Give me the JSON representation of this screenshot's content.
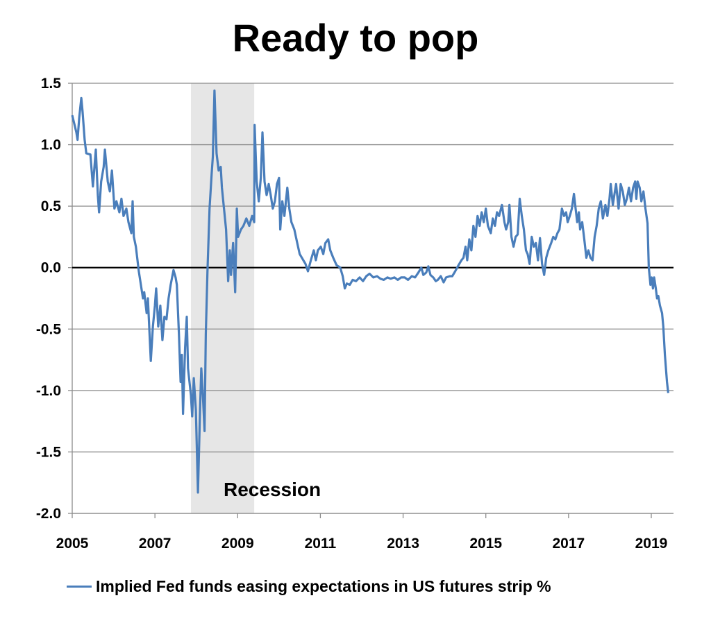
{
  "chart_data": {
    "type": "line",
    "title": "Ready to pop",
    "xlabel": "",
    "ylabel": "",
    "xlim": [
      2005,
      2019.55
    ],
    "ylim": [
      -2.0,
      1.5
    ],
    "x_ticks": [
      "2005",
      "2007",
      "2009",
      "2011",
      "2013",
      "2015",
      "2017",
      "2019"
    ],
    "y_ticks": [
      "1.5",
      "1.0",
      "0.5",
      "0.0",
      "-0.5",
      "-1.0",
      "-1.5",
      "-2.0"
    ],
    "grid": "horizontal",
    "zero_line": true,
    "legend": "bottom",
    "colors": {
      "series": "#4a7ebb",
      "recession_shade": "#e6e6e6",
      "grid": "#8c8c8c",
      "zero_line": "#000000"
    },
    "annotations": [
      {
        "text": "Recession",
        "x_start": 2007.87,
        "x_end": 2009.4
      }
    ],
    "series": [
      {
        "name": "Implied Fed funds easing expectations in US futures strip %",
        "points": [
          [
            2005.0,
            1.24
          ],
          [
            2005.05,
            1.17
          ],
          [
            2005.1,
            1.1
          ],
          [
            2005.13,
            1.04
          ],
          [
            2005.17,
            1.22
          ],
          [
            2005.22,
            1.38
          ],
          [
            2005.25,
            1.27
          ],
          [
            2005.3,
            1.04
          ],
          [
            2005.34,
            0.93
          ],
          [
            2005.44,
            0.92
          ],
          [
            2005.5,
            0.66
          ],
          [
            2005.57,
            0.96
          ],
          [
            2005.62,
            0.59
          ],
          [
            2005.65,
            0.45
          ],
          [
            2005.7,
            0.7
          ],
          [
            2005.76,
            0.82
          ],
          [
            2005.79,
            0.96
          ],
          [
            2005.86,
            0.7
          ],
          [
            2005.91,
            0.62
          ],
          [
            2005.96,
            0.79
          ],
          [
            2006.02,
            0.48
          ],
          [
            2006.07,
            0.54
          ],
          [
            2006.14,
            0.45
          ],
          [
            2006.19,
            0.56
          ],
          [
            2006.24,
            0.42
          ],
          [
            2006.31,
            0.48
          ],
          [
            2006.36,
            0.37
          ],
          [
            2006.43,
            0.28
          ],
          [
            2006.46,
            0.54
          ],
          [
            2006.49,
            0.25
          ],
          [
            2006.54,
            0.17
          ],
          [
            2006.61,
            -0.03
          ],
          [
            2006.66,
            -0.14
          ],
          [
            2006.71,
            -0.25
          ],
          [
            2006.74,
            -0.2
          ],
          [
            2006.8,
            -0.37
          ],
          [
            2006.83,
            -0.25
          ],
          [
            2006.9,
            -0.76
          ],
          [
            2006.95,
            -0.48
          ],
          [
            2007.0,
            -0.31
          ],
          [
            2007.03,
            -0.17
          ],
          [
            2007.08,
            -0.48
          ],
          [
            2007.13,
            -0.31
          ],
          [
            2007.18,
            -0.59
          ],
          [
            2007.23,
            -0.4
          ],
          [
            2007.28,
            -0.42
          ],
          [
            2007.33,
            -0.25
          ],
          [
            2007.38,
            -0.14
          ],
          [
            2007.45,
            -0.02
          ],
          [
            2007.5,
            -0.08
          ],
          [
            2007.53,
            -0.14
          ],
          [
            2007.58,
            -0.54
          ],
          [
            2007.62,
            -0.93
          ],
          [
            2007.65,
            -0.71
          ],
          [
            2007.68,
            -1.19
          ],
          [
            2007.73,
            -0.65
          ],
          [
            2007.77,
            -0.4
          ],
          [
            2007.8,
            -0.82
          ],
          [
            2007.87,
            -1.04
          ],
          [
            2007.9,
            -1.21
          ],
          [
            2007.94,
            -0.9
          ],
          [
            2007.99,
            -1.16
          ],
          [
            2008.04,
            -1.83
          ],
          [
            2008.09,
            -1.16
          ],
          [
            2008.12,
            -0.82
          ],
          [
            2008.16,
            -1.04
          ],
          [
            2008.2,
            -1.33
          ],
          [
            2008.23,
            -0.54
          ],
          [
            2008.27,
            -0.03
          ],
          [
            2008.32,
            0.48
          ],
          [
            2008.37,
            0.76
          ],
          [
            2008.4,
            0.9
          ],
          [
            2008.44,
            1.44
          ],
          [
            2008.49,
            0.93
          ],
          [
            2008.54,
            0.79
          ],
          [
            2008.59,
            0.82
          ],
          [
            2008.62,
            0.65
          ],
          [
            2008.67,
            0.48
          ],
          [
            2008.72,
            0.31
          ],
          [
            2008.77,
            -0.11
          ],
          [
            2008.81,
            0.14
          ],
          [
            2008.84,
            -0.06
          ],
          [
            2008.89,
            0.2
          ],
          [
            2008.94,
            -0.2
          ],
          [
            2008.98,
            0.48
          ],
          [
            2009.01,
            0.25
          ],
          [
            2009.08,
            0.31
          ],
          [
            2009.14,
            0.34
          ],
          [
            2009.21,
            0.4
          ],
          [
            2009.28,
            0.34
          ],
          [
            2009.35,
            0.42
          ],
          [
            2009.4,
            0.37
          ],
          [
            2009.41,
            1.16
          ],
          [
            2009.46,
            0.7
          ],
          [
            2009.51,
            0.54
          ],
          [
            2009.56,
            0.73
          ],
          [
            2009.6,
            1.1
          ],
          [
            2009.65,
            0.7
          ],
          [
            2009.7,
            0.59
          ],
          [
            2009.75,
            0.68
          ],
          [
            2009.8,
            0.59
          ],
          [
            2009.85,
            0.48
          ],
          [
            2009.9,
            0.54
          ],
          [
            2009.95,
            0.68
          ],
          [
            2010.0,
            0.73
          ],
          [
            2010.03,
            0.31
          ],
          [
            2010.08,
            0.54
          ],
          [
            2010.13,
            0.42
          ],
          [
            2010.2,
            0.65
          ],
          [
            2010.25,
            0.48
          ],
          [
            2010.3,
            0.37
          ],
          [
            2010.37,
            0.31
          ],
          [
            2010.44,
            0.2
          ],
          [
            2010.5,
            0.11
          ],
          [
            2010.57,
            0.07
          ],
          [
            2010.64,
            0.03
          ],
          [
            2010.7,
            -0.03
          ],
          [
            2010.77,
            0.06
          ],
          [
            2010.84,
            0.14
          ],
          [
            2010.89,
            0.06
          ],
          [
            2010.94,
            0.14
          ],
          [
            2011.01,
            0.17
          ],
          [
            2011.07,
            0.11
          ],
          [
            2011.12,
            0.2
          ],
          [
            2011.19,
            0.23
          ],
          [
            2011.24,
            0.14
          ],
          [
            2011.31,
            0.08
          ],
          [
            2011.39,
            0.02
          ],
          [
            2011.48,
            0.0
          ],
          [
            2011.54,
            -0.07
          ],
          [
            2011.59,
            -0.17
          ],
          [
            2011.64,
            -0.13
          ],
          [
            2011.71,
            -0.14
          ],
          [
            2011.78,
            -0.1
          ],
          [
            2011.86,
            -0.11
          ],
          [
            2011.95,
            -0.08
          ],
          [
            2012.03,
            -0.11
          ],
          [
            2012.11,
            -0.07
          ],
          [
            2012.19,
            -0.05
          ],
          [
            2012.28,
            -0.08
          ],
          [
            2012.37,
            -0.07
          ],
          [
            2012.45,
            -0.09
          ],
          [
            2012.53,
            -0.1
          ],
          [
            2012.62,
            -0.08
          ],
          [
            2012.7,
            -0.09
          ],
          [
            2012.79,
            -0.08
          ],
          [
            2012.87,
            -0.1
          ],
          [
            2012.95,
            -0.08
          ],
          [
            2013.04,
            -0.08
          ],
          [
            2013.12,
            -0.1
          ],
          [
            2013.21,
            -0.07
          ],
          [
            2013.29,
            -0.08
          ],
          [
            2013.37,
            -0.04
          ],
          [
            2013.44,
            0.0
          ],
          [
            2013.49,
            -0.06
          ],
          [
            2013.56,
            -0.04
          ],
          [
            2013.61,
            0.01
          ],
          [
            2013.66,
            -0.06
          ],
          [
            2013.73,
            -0.08
          ],
          [
            2013.79,
            -0.11
          ],
          [
            2013.84,
            -0.1
          ],
          [
            2013.91,
            -0.07
          ],
          [
            2013.98,
            -0.12
          ],
          [
            2014.04,
            -0.08
          ],
          [
            2014.13,
            -0.07
          ],
          [
            2014.19,
            -0.07
          ],
          [
            2014.26,
            -0.03
          ],
          [
            2014.34,
            0.02
          ],
          [
            2014.41,
            0.06
          ],
          [
            2014.46,
            0.08
          ],
          [
            2014.51,
            0.17
          ],
          [
            2014.55,
            0.06
          ],
          [
            2014.6,
            0.23
          ],
          [
            2014.65,
            0.14
          ],
          [
            2014.7,
            0.34
          ],
          [
            2014.75,
            0.25
          ],
          [
            2014.8,
            0.42
          ],
          [
            2014.85,
            0.34
          ],
          [
            2014.9,
            0.45
          ],
          [
            2014.95,
            0.37
          ],
          [
            2015.0,
            0.48
          ],
          [
            2015.05,
            0.34
          ],
          [
            2015.12,
            0.28
          ],
          [
            2015.17,
            0.4
          ],
          [
            2015.22,
            0.34
          ],
          [
            2015.27,
            0.45
          ],
          [
            2015.32,
            0.42
          ],
          [
            2015.39,
            0.51
          ],
          [
            2015.45,
            0.37
          ],
          [
            2015.49,
            0.31
          ],
          [
            2015.54,
            0.37
          ],
          [
            2015.57,
            0.51
          ],
          [
            2015.62,
            0.25
          ],
          [
            2015.67,
            0.17
          ],
          [
            2015.72,
            0.25
          ],
          [
            2015.77,
            0.27
          ],
          [
            2015.82,
            0.56
          ],
          [
            2015.87,
            0.42
          ],
          [
            2015.92,
            0.31
          ],
          [
            2015.97,
            0.14
          ],
          [
            2016.01,
            0.11
          ],
          [
            2016.06,
            0.03
          ],
          [
            2016.11,
            0.25
          ],
          [
            2016.16,
            0.17
          ],
          [
            2016.21,
            0.2
          ],
          [
            2016.26,
            0.06
          ],
          [
            2016.31,
            0.24
          ],
          [
            2016.36,
            0.03
          ],
          [
            2016.41,
            -0.06
          ],
          [
            2016.46,
            0.08
          ],
          [
            2016.51,
            0.14
          ],
          [
            2016.58,
            0.2
          ],
          [
            2016.63,
            0.25
          ],
          [
            2016.68,
            0.23
          ],
          [
            2016.73,
            0.28
          ],
          [
            2016.78,
            0.31
          ],
          [
            2016.84,
            0.48
          ],
          [
            2016.89,
            0.42
          ],
          [
            2016.94,
            0.45
          ],
          [
            2016.98,
            0.37
          ],
          [
            2017.03,
            0.42
          ],
          [
            2017.08,
            0.48
          ],
          [
            2017.13,
            0.6
          ],
          [
            2017.16,
            0.51
          ],
          [
            2017.21,
            0.37
          ],
          [
            2017.25,
            0.45
          ],
          [
            2017.28,
            0.31
          ],
          [
            2017.33,
            0.37
          ],
          [
            2017.38,
            0.23
          ],
          [
            2017.43,
            0.08
          ],
          [
            2017.48,
            0.14
          ],
          [
            2017.53,
            0.08
          ],
          [
            2017.58,
            0.06
          ],
          [
            2017.63,
            0.25
          ],
          [
            2017.68,
            0.34
          ],
          [
            2017.73,
            0.48
          ],
          [
            2017.78,
            0.54
          ],
          [
            2017.83,
            0.4
          ],
          [
            2017.89,
            0.51
          ],
          [
            2017.94,
            0.42
          ],
          [
            2017.99,
            0.56
          ],
          [
            2018.02,
            0.68
          ],
          [
            2018.07,
            0.51
          ],
          [
            2018.12,
            0.62
          ],
          [
            2018.15,
            0.68
          ],
          [
            2018.21,
            0.48
          ],
          [
            2018.26,
            0.68
          ],
          [
            2018.31,
            0.62
          ],
          [
            2018.36,
            0.51
          ],
          [
            2018.41,
            0.56
          ],
          [
            2018.46,
            0.65
          ],
          [
            2018.51,
            0.54
          ],
          [
            2018.56,
            0.65
          ],
          [
            2018.61,
            0.7
          ],
          [
            2018.64,
            0.56
          ],
          [
            2018.67,
            0.7
          ],
          [
            2018.72,
            0.65
          ],
          [
            2018.76,
            0.54
          ],
          [
            2018.81,
            0.62
          ],
          [
            2018.86,
            0.48
          ],
          [
            2018.91,
            0.36
          ],
          [
            2018.94,
            0.0
          ],
          [
            2018.98,
            -0.14
          ],
          [
            2019.01,
            -0.08
          ],
          [
            2019.04,
            -0.17
          ],
          [
            2019.07,
            -0.08
          ],
          [
            2019.11,
            -0.17
          ],
          [
            2019.14,
            -0.25
          ],
          [
            2019.17,
            -0.23
          ],
          [
            2019.21,
            -0.31
          ],
          [
            2019.26,
            -0.37
          ],
          [
            2019.29,
            -0.48
          ],
          [
            2019.33,
            -0.71
          ],
          [
            2019.38,
            -0.93
          ],
          [
            2019.41,
            -1.02
          ]
        ]
      }
    ]
  }
}
